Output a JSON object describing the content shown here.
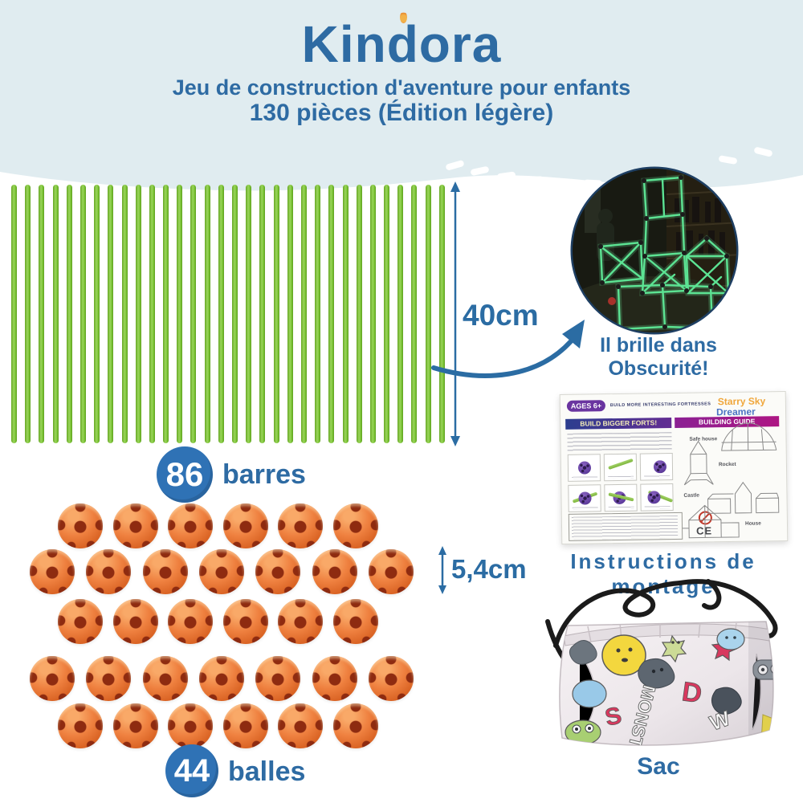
{
  "header": {
    "brand": "Kindora",
    "subtitle_line1": "Jeu de construction d'aventure pour enfants",
    "subtitle_line2": "130 pièces (Édition légère)"
  },
  "bars_section": {
    "length_label": "40cm",
    "count_badge": "86",
    "count_label": "barres",
    "bars_shown": 32
  },
  "balls_section": {
    "diameter_label": "5,4cm",
    "count_badge": "44",
    "count_label": "balles",
    "rows": [
      6,
      7,
      6,
      7,
      6
    ]
  },
  "glow_section": {
    "caption_line1": "Il brille dans",
    "caption_line2": "Obscurité!"
  },
  "instructions_section": {
    "caption": "Instructions de montage",
    "sheet": {
      "ages_badge": "AGES 6+",
      "tagline": "BUILD MORE INTERESTING FORTRESSES",
      "brand_line1": "Starry Sky",
      "brand_line2": "Dreamer",
      "left_header": "BUILD BIGGER FORTS!",
      "right_header": "BUILDING GUIDE",
      "models": [
        "Safe house",
        "Rocket",
        "Castle",
        "House"
      ],
      "ce_mark": "CE"
    }
  },
  "bag_section": {
    "caption": "Sac",
    "print_word": "MONSTER"
  },
  "colors": {
    "accent_blue": "#2e6ba3",
    "badge_blue": "#2f72b5",
    "band_blue": "#e0ecf0",
    "bar_green": "#7cc636",
    "ball_orange": "#ef8140",
    "glow_green": "#5ce393"
  }
}
